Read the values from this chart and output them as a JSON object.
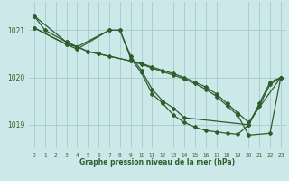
{
  "xlabel": "Graphe pression niveau de la mer (hPa)",
  "background_color": "#cce8e8",
  "grid_color": "#a8d0d0",
  "line_color": "#2d5e2d",
  "xlim": [
    -0.5,
    23.5
  ],
  "ylim": [
    1018.5,
    1021.6
  ],
  "yticks": [
    1019,
    1020,
    1021
  ],
  "xticks": [
    0,
    1,
    2,
    3,
    4,
    5,
    6,
    7,
    8,
    9,
    10,
    11,
    12,
    13,
    14,
    15,
    16,
    17,
    18,
    19,
    20,
    21,
    22,
    23
  ],
  "series": [
    {
      "x": [
        0,
        1,
        3,
        4,
        5,
        6,
        7,
        9,
        10,
        11,
        12,
        13,
        14,
        15,
        16,
        17,
        18,
        19,
        20,
        23
      ],
      "y": [
        1021.3,
        1021.0,
        1020.75,
        1020.65,
        1020.55,
        1020.5,
        1020.45,
        1020.35,
        1020.3,
        1020.22,
        1020.15,
        1020.08,
        1020.0,
        1019.9,
        1019.8,
        1019.65,
        1019.45,
        1019.25,
        1019.05,
        1020.0
      ]
    },
    {
      "x": [
        0,
        3,
        4,
        7,
        8,
        9,
        10,
        11,
        12,
        13,
        14,
        20,
        21,
        22,
        23
      ],
      "y": [
        1021.05,
        1020.7,
        1020.65,
        1021.0,
        1021.0,
        1020.45,
        1020.15,
        1019.75,
        1019.5,
        1019.35,
        1019.15,
        1019.0,
        1019.4,
        1019.85,
        1020.0
      ]
    },
    {
      "x": [
        0,
        3,
        4,
        7,
        8,
        9,
        10,
        11,
        12,
        13,
        14,
        15,
        16,
        17,
        18,
        19,
        20,
        21,
        22,
        23
      ],
      "y": [
        1021.05,
        1020.7,
        1020.6,
        1021.0,
        1021.0,
        1020.4,
        1020.1,
        1019.65,
        1019.45,
        1019.2,
        1019.05,
        1018.95,
        1018.88,
        1018.85,
        1018.82,
        1018.8,
        1019.0,
        1019.45,
        1019.9,
        1020.0
      ]
    },
    {
      "x": [
        0,
        3,
        4,
        5,
        6,
        9,
        10,
        11,
        12,
        13,
        14,
        15,
        16,
        17,
        18,
        19,
        20,
        22,
        23
      ],
      "y": [
        1021.3,
        1020.75,
        1020.65,
        1020.55,
        1020.5,
        1020.35,
        1020.28,
        1020.2,
        1020.12,
        1020.05,
        1019.97,
        1019.87,
        1019.75,
        1019.6,
        1019.4,
        1019.2,
        1018.78,
        1018.82,
        1020.0
      ]
    }
  ]
}
